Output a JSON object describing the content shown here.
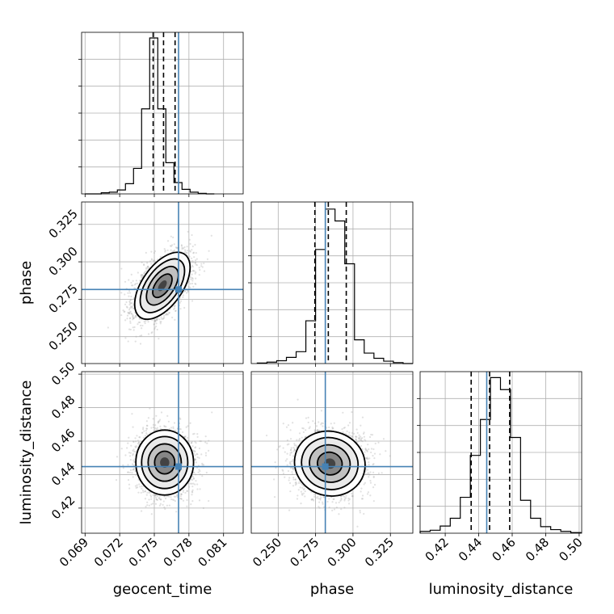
{
  "chart_data": {
    "type": "corner",
    "title": "",
    "parameters": [
      "geocent_time",
      "phase",
      "luminosity_distance"
    ],
    "axis_labels": {
      "geocent_time": "geocent_time",
      "phase": "phase",
      "luminosity_distance": "luminosity_distance"
    },
    "ranges": {
      "geocent_time": [
        0.0687,
        0.0827
      ],
      "phase": [
        0.232,
        0.34
      ],
      "luminosity_distance": [
        0.405,
        0.5015
      ]
    },
    "ticks": {
      "geocent_time": [
        {
          "value": 0.069,
          "label": "0.069"
        },
        {
          "value": 0.072,
          "label": "0.072"
        },
        {
          "value": 0.075,
          "label": "0.075"
        },
        {
          "value": 0.078,
          "label": "0.078"
        },
        {
          "value": 0.081,
          "label": "0.081"
        }
      ],
      "phase": [
        {
          "value": 0.25,
          "label": "0.250"
        },
        {
          "value": 0.275,
          "label": "0.275"
        },
        {
          "value": 0.3,
          "label": "0.300"
        },
        {
          "value": 0.325,
          "label": "0.325"
        }
      ],
      "luminosity_distance": [
        {
          "value": 0.42,
          "label": "0.42"
        },
        {
          "value": 0.44,
          "label": "0.44"
        },
        {
          "value": 0.46,
          "label": "0.46"
        },
        {
          "value": 0.48,
          "label": "0.48"
        },
        {
          "value": 0.5,
          "label": "0.50"
        }
      ]
    },
    "truths": {
      "geocent_time": 0.0771,
      "phase": 0.2815,
      "luminosity_distance": 0.4448
    },
    "quantiles": {
      "geocent_time": [
        0.0749,
        0.0758,
        0.0768
      ],
      "phase": [
        0.2745,
        0.2835,
        0.2955
      ],
      "luminosity_distance": [
        0.4355,
        0.4465,
        0.4585
      ]
    },
    "marginals": {
      "geocent_time": {
        "edges": [
          0.069,
          0.0697,
          0.0704,
          0.0711,
          0.0718,
          0.0725,
          0.0732,
          0.0739,
          0.0746,
          0.0753,
          0.076,
          0.0767,
          0.0774,
          0.0781,
          0.0788,
          0.0795,
          0.0802
        ],
        "counts": [
          0,
          0,
          2,
          3,
          7,
          18,
          45,
          150,
          275,
          150,
          55,
          20,
          8,
          3,
          1,
          0
        ],
        "ymax": 285
      },
      "phase": {
        "edges": [
          0.236,
          0.2425,
          0.249,
          0.2555,
          0.262,
          0.2685,
          0.275,
          0.2815,
          0.288,
          0.2945,
          0.301,
          0.3075,
          0.314,
          0.3205,
          0.327,
          0.3335,
          0.34
        ],
        "counts": [
          1,
          3,
          6,
          13,
          25,
          90,
          240,
          325,
          300,
          210,
          50,
          22,
          11,
          5,
          2,
          0
        ],
        "ymax": 340
      },
      "luminosity_distance": {
        "edges": [
          0.405,
          0.411,
          0.417,
          0.423,
          0.429,
          0.435,
          0.441,
          0.447,
          0.453,
          0.459,
          0.465,
          0.471,
          0.477,
          0.483,
          0.489,
          0.495,
          0.501
        ],
        "counts": [
          3,
          5,
          12,
          25,
          60,
          130,
          190,
          260,
          240,
          160,
          55,
          25,
          11,
          6,
          3,
          1
        ],
        "ymax": 270
      }
    },
    "joint": {
      "phase|geocent_time": {
        "mean": [
          0.0757,
          0.284
        ],
        "std": [
          0.0012,
          0.0112
        ],
        "rho": 0.55
      },
      "luminosity_distance|geocent_time": {
        "mean": [
          0.0759,
          0.4472
        ],
        "std": [
          0.00125,
          0.0097
        ],
        "rho": 0.0
      },
      "luminosity_distance|phase": {
        "mean": [
          0.2845,
          0.4466
        ],
        "std": [
          0.0118,
          0.0097
        ],
        "rho": -0.05
      }
    },
    "grid": true,
    "truth_color": "#4682b4",
    "hist_color": "#000000",
    "sample_color": "#a8a8a8",
    "grid_color": "#b0b0b0"
  }
}
